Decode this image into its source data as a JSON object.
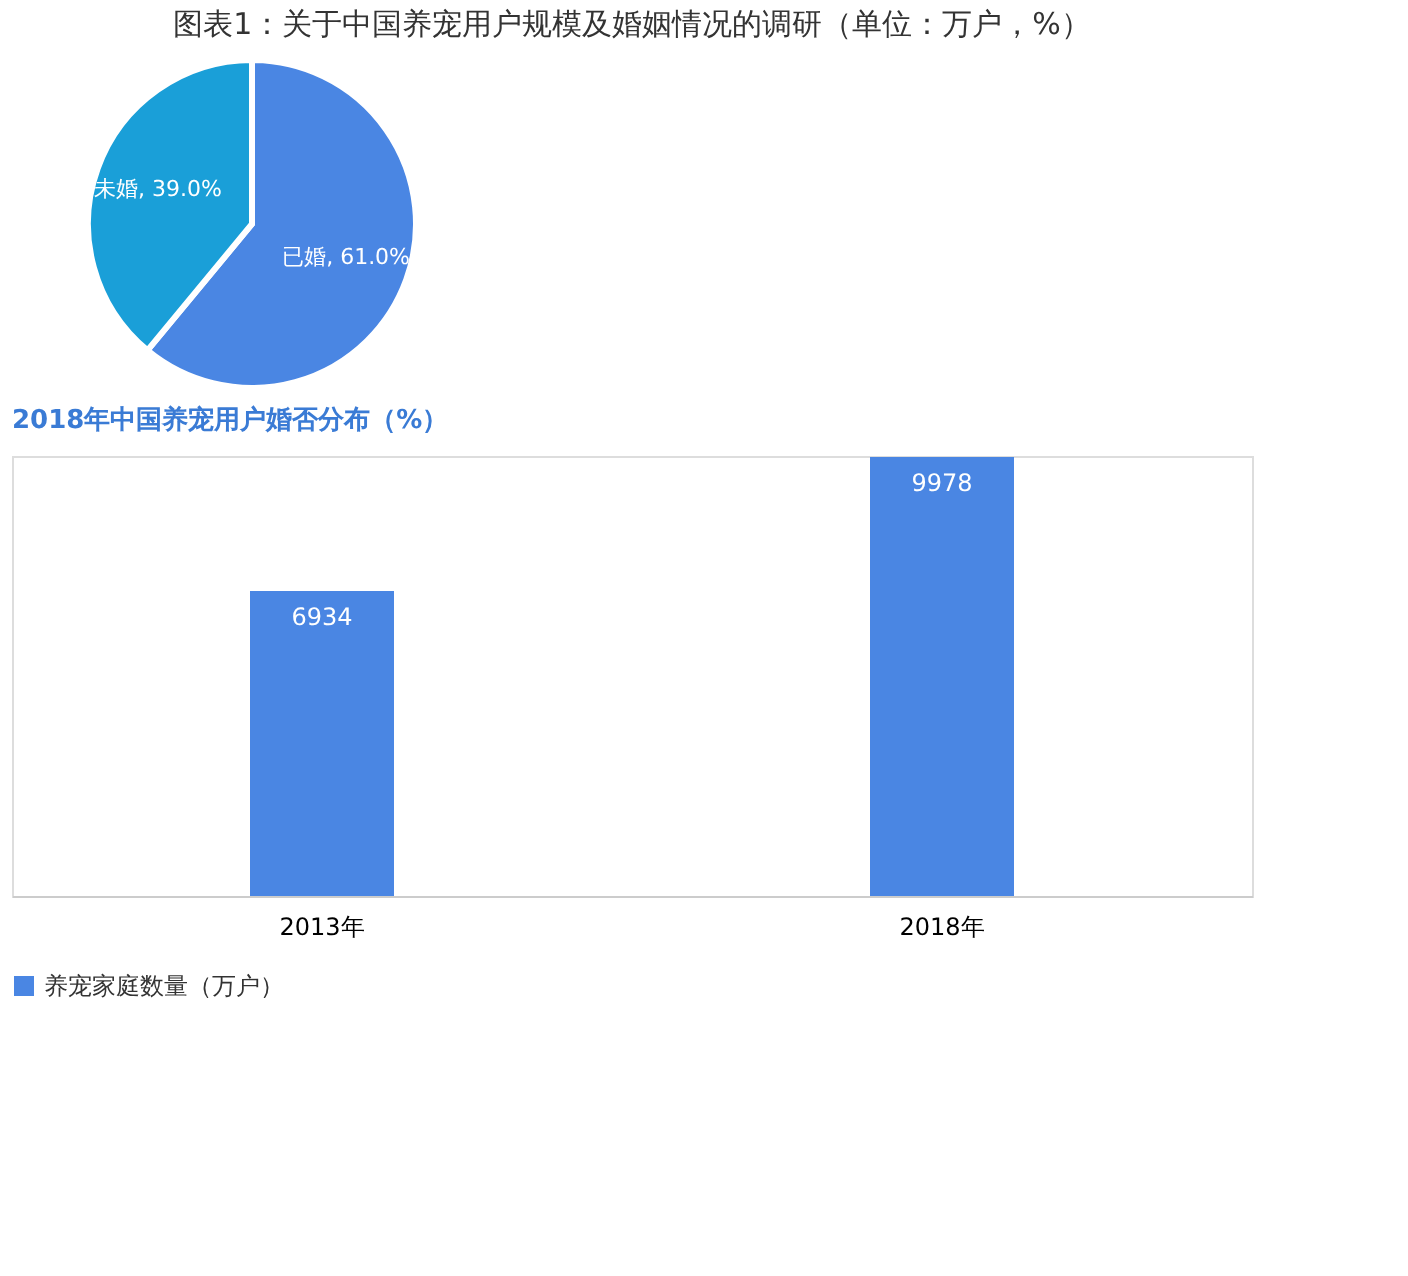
{
  "chart_data": [
    {
      "type": "pie",
      "title": "图表1：关于中国养宠用户规模及婚姻情况的调研（单位：万户，%）",
      "subtitle": "2018年中国养宠用户婚否分布（%）",
      "categories": [
        "已婚",
        "未婚"
      ],
      "values": [
        61.0,
        39.0
      ],
      "value_labels": [
        "61.0%",
        "39.0%"
      ],
      "colors": [
        "#4a86e3",
        "#1a9fd8"
      ]
    },
    {
      "type": "bar",
      "categories": [
        "2013年",
        "2018年"
      ],
      "series": [
        {
          "name": "养宠家庭数量（万户）",
          "color": "#4a86e3",
          "values": [
            6934,
            9978
          ]
        }
      ],
      "data_labels": true,
      "legend": "bottom",
      "tick_labels": "x"
    }
  ]
}
